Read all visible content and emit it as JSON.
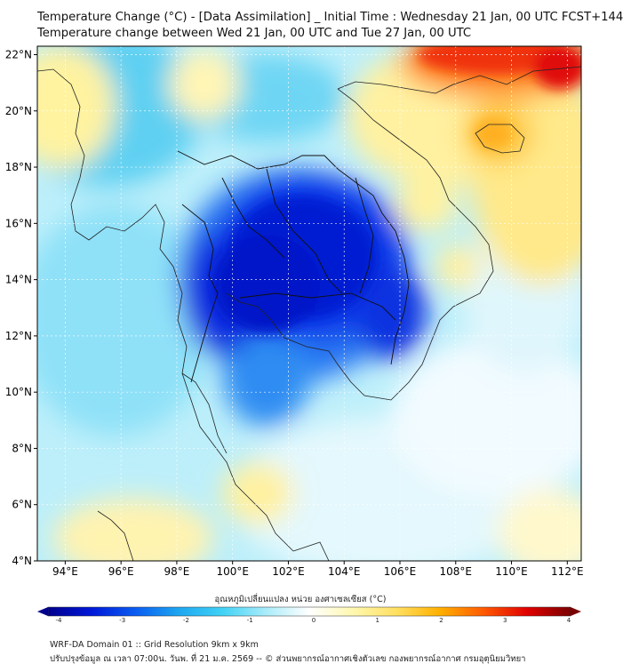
{
  "header": {
    "title": "Temperature Change (°C) - [Data Assimilation] _ Initial Time : Wednesday 21 Jan, 00 UTC FCST+144",
    "subtitle": "Temperature change between Wed 21 Jan, 00 UTC and Tue 27 Jan, 00 UTC"
  },
  "map": {
    "lon_ticks": [
      "94°E",
      "96°E",
      "98°E",
      "100°E",
      "102°E",
      "104°E",
      "106°E",
      "108°E",
      "110°E",
      "112°E"
    ],
    "lat_ticks": [
      "4°N",
      "6°N",
      "8°N",
      "10°N",
      "12°N",
      "14°N",
      "16°N",
      "18°N",
      "20°N",
      "22°N"
    ],
    "lon_range": [
      93,
      112.5
    ],
    "lat_range": [
      4,
      22.3
    ],
    "gridlines": true
  },
  "colorbar": {
    "title": "อุณหภูมิเปลี่ยนแปลง หน่วย องศาเซลเซียส (°C)",
    "ticks": [
      "-4",
      "-3",
      "-2",
      "-1",
      "0",
      "1",
      "2",
      "3",
      "4"
    ],
    "range": [
      -4,
      4
    ],
    "colors": [
      "#00008c",
      "#0018d8",
      "#0a5cf0",
      "#1ea6f0",
      "#40d2f5",
      "#a9ecfa",
      "#ffffff",
      "#fff8b0",
      "#ffe060",
      "#ffb000",
      "#ff5a00",
      "#e00000",
      "#7a0000"
    ]
  },
  "footer": {
    "line1": "WRF-DA Domain 01 :: Grid Resolution 9km x 9km",
    "line2": "ปรับปรุงข้อมูล ณ เวลา 07:00น. วันพ. ที่ 21 ม.ค. 2569 -- © ส่วนพยากรณ์อากาศเชิงตัวเลข กองพยากรณ์อากาศ กรมอุตุนิยมวิทยา"
  }
}
